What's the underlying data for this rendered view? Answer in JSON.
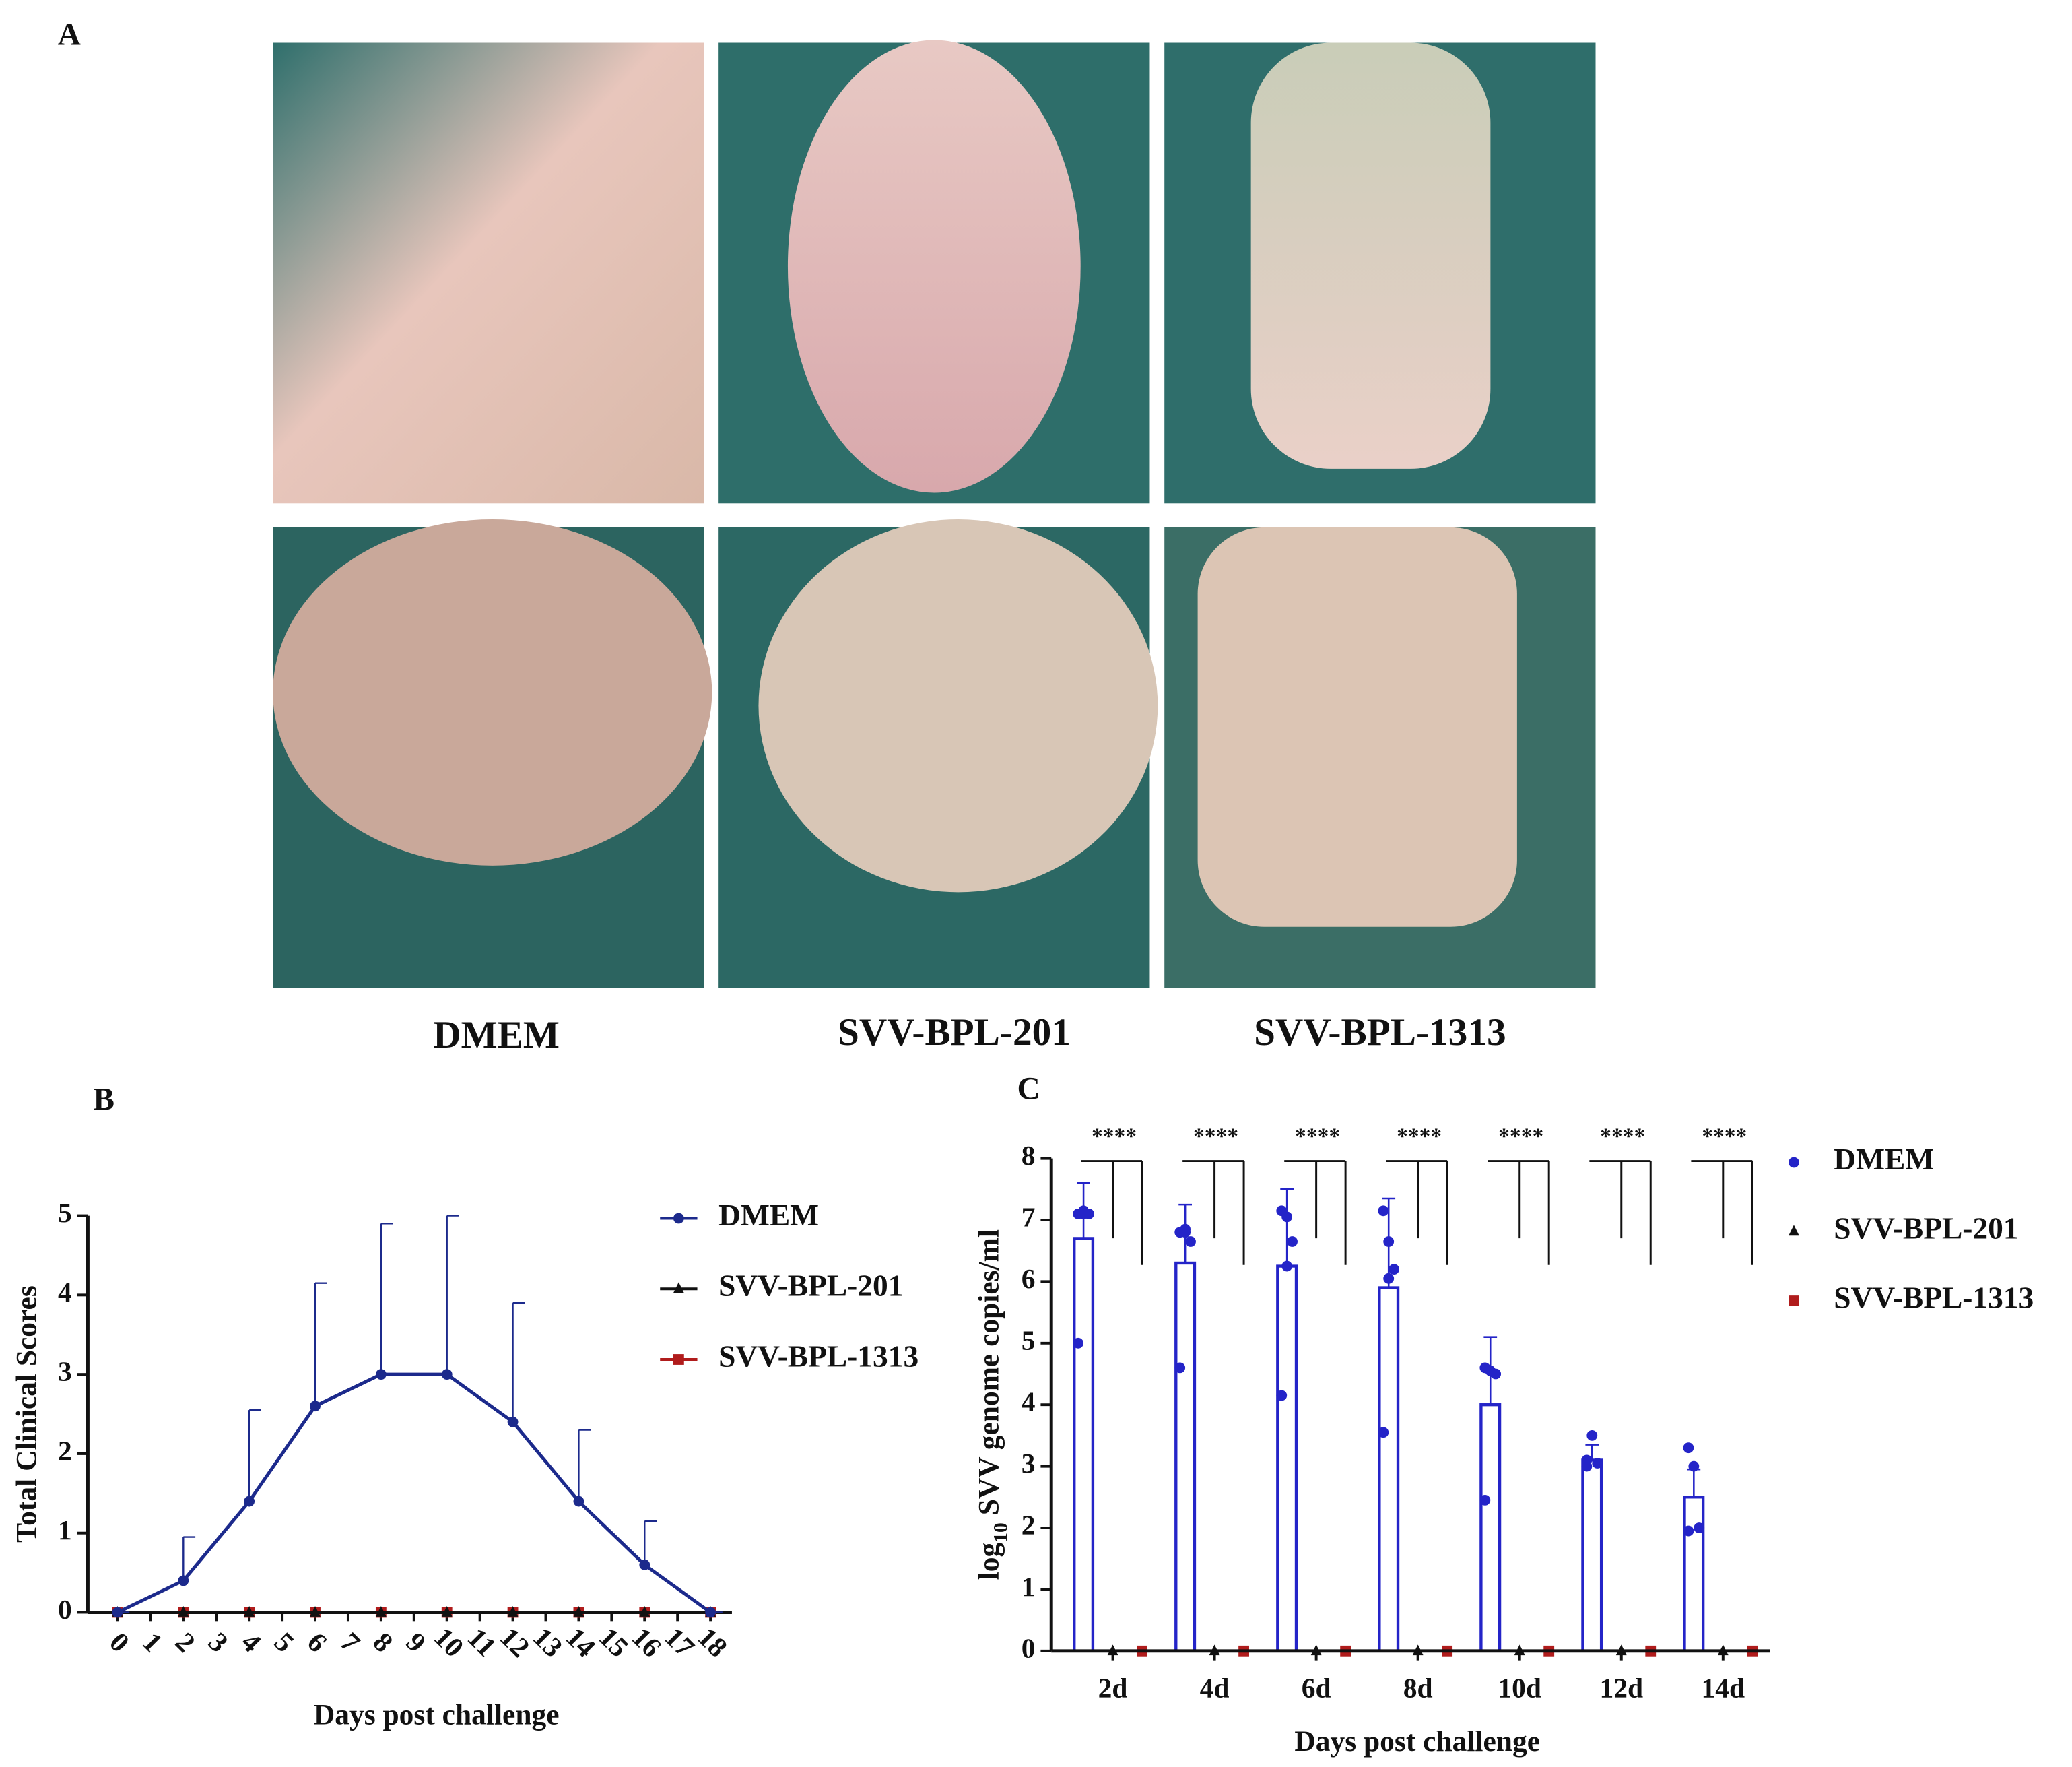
{
  "panel_a": {
    "label": "A",
    "captions": [
      "DMEM",
      "SVV-BPL-201",
      "SVV-BPL-1313"
    ]
  },
  "chart_data": [
    {
      "type": "line",
      "panel": "B",
      "x_label": "Days post challenge",
      "y_label": "Total Clinical Scores",
      "x": [
        0,
        2,
        4,
        6,
        8,
        10,
        12,
        14,
        16,
        18
      ],
      "series": [
        {
          "name": "DMEM",
          "color": "#1c2a8c",
          "marker": "circle",
          "values": [
            0,
            0.4,
            1.4,
            2.6,
            3,
            3,
            2.4,
            1.4,
            0.6,
            0
          ],
          "errors": [
            0,
            0.55,
            1.15,
            1.55,
            1.9,
            2.0,
            1.5,
            0.9,
            0.55,
            0
          ]
        },
        {
          "name": "SVV-BPL-201",
          "color": "#111111",
          "marker": "triangle",
          "values": [
            0,
            0,
            0,
            0,
            0,
            0,
            0,
            0,
            0,
            0
          ]
        },
        {
          "name": "SVV-BPL-1313",
          "color": "#b01c1c",
          "marker": "square",
          "values": [
            0,
            0,
            0,
            0,
            0,
            0,
            0,
            0,
            0,
            0
          ]
        }
      ],
      "xlim": [
        -0.9,
        18.65
      ],
      "xticks": [
        0,
        1,
        2,
        3,
        4,
        5,
        6,
        7,
        8,
        9,
        10,
        11,
        12,
        13,
        14,
        15,
        16,
        17,
        18
      ],
      "ylim": [
        0,
        5
      ],
      "yticks": [
        0,
        1,
        2,
        3,
        4,
        5
      ],
      "legend": "right"
    },
    {
      "type": "bar",
      "panel": "C",
      "x_label": "Days post challenge",
      "y_label_parts": [
        "log",
        "10",
        " SVV genome copies/ml"
      ],
      "categories": [
        "2d",
        "4d",
        "6d",
        "8d",
        "10d",
        "12d",
        "14d"
      ],
      "series": [
        {
          "name": "DMEM",
          "color": "#2424c8",
          "marker": "circle",
          "values": [
            6.7,
            6.3,
            6.25,
            5.9,
            4.0,
            3.1,
            2.5
          ],
          "errors": [
            0.9,
            0.95,
            1.25,
            1.45,
            1.1,
            0.25,
            0.45
          ],
          "points": [
            [
              7.1,
              7.15,
              7.1,
              5.0,
              7.1
            ],
            [
              6.8,
              6.85,
              6.65,
              4.6,
              6.8
            ],
            [
              7.15,
              7.05,
              6.65,
              4.15,
              6.25
            ],
            [
              7.15,
              6.65,
              6.2,
              3.55,
              6.05
            ],
            [
              4.6,
              4.55,
              4.5,
              2.45
            ],
            [
              3.1,
              3.5,
              3.05,
              3.0
            ],
            [
              3.3,
              3.0,
              2.0,
              1.95
            ]
          ]
        },
        {
          "name": "SVV-BPL-201",
          "color": "#111111",
          "marker": "triangle",
          "values": [
            0,
            0,
            0,
            0,
            0,
            0,
            0
          ]
        },
        {
          "name": "SVV-BPL-1313",
          "color": "#b01c1c",
          "marker": "square",
          "values": [
            0,
            0,
            0,
            0,
            0,
            0,
            0
          ]
        }
      ],
      "significance": [
        "****",
        "****",
        "****",
        "****",
        "****",
        "****",
        "****"
      ],
      "ylim": [
        0,
        8
      ],
      "yticks": [
        0,
        1,
        2,
        3,
        4,
        5,
        6,
        7,
        8
      ],
      "legend": "right"
    }
  ]
}
